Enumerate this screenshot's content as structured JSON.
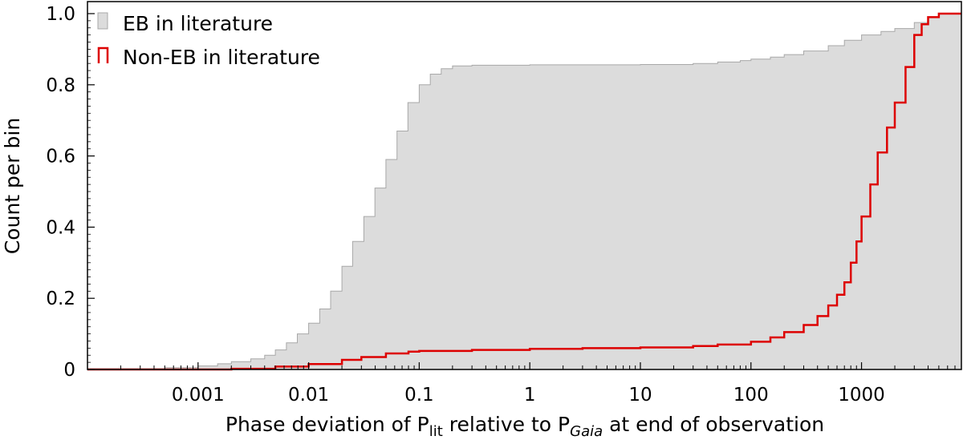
{
  "chart_data": {
    "type": "area",
    "x_scale": "log",
    "x_range": [
      0.0001,
      8000
    ],
    "y_range": [
      0,
      1.0
    ],
    "grid": false,
    "legend_position": "top-left",
    "xlabel_parts": {
      "prefix": "Phase deviation of P",
      "sub1": "lit",
      "middle": " relative to P",
      "sub2": "Gaia",
      "suffix": " at end of observation"
    },
    "ylabel": "Count per bin",
    "x_tick_labels": [
      "0.001",
      "0.01",
      "0.1",
      "1",
      "10",
      "100",
      "1000"
    ],
    "x_tick_values": [
      0.001,
      0.01,
      0.1,
      1,
      10,
      100,
      1000
    ],
    "y_tick_labels": [
      "0",
      "0.2",
      "0.4",
      "0.6",
      "0.8",
      "1.0"
    ],
    "y_tick_values": [
      0,
      0.2,
      0.4,
      0.6,
      0.8,
      1.0
    ],
    "series": [
      {
        "name": "EB in literature",
        "style": "filled-step",
        "color": "#dcdcdc",
        "edge_color": "#a8a8a8",
        "points": [
          [
            0.0001,
            0.002
          ],
          [
            0.0005,
            0.005
          ],
          [
            0.001,
            0.01
          ],
          [
            0.0015,
            0.016
          ],
          [
            0.002,
            0.022
          ],
          [
            0.003,
            0.03
          ],
          [
            0.004,
            0.04
          ],
          [
            0.005,
            0.055
          ],
          [
            0.0063,
            0.075
          ],
          [
            0.0079,
            0.1
          ],
          [
            0.01,
            0.13
          ],
          [
            0.0126,
            0.17
          ],
          [
            0.0158,
            0.22
          ],
          [
            0.02,
            0.29
          ],
          [
            0.025,
            0.36
          ],
          [
            0.0316,
            0.43
          ],
          [
            0.0398,
            0.51
          ],
          [
            0.05,
            0.59
          ],
          [
            0.063,
            0.67
          ],
          [
            0.079,
            0.75
          ],
          [
            0.1,
            0.8
          ],
          [
            0.126,
            0.83
          ],
          [
            0.158,
            0.845
          ],
          [
            0.2,
            0.853
          ],
          [
            0.3,
            0.855
          ],
          [
            1,
            0.856
          ],
          [
            10,
            0.857
          ],
          [
            30,
            0.86
          ],
          [
            50,
            0.864
          ],
          [
            80,
            0.868
          ],
          [
            100,
            0.872
          ],
          [
            150,
            0.878
          ],
          [
            200,
            0.885
          ],
          [
            300,
            0.895
          ],
          [
            500,
            0.91
          ],
          [
            700,
            0.925
          ],
          [
            1000,
            0.94
          ],
          [
            1500,
            0.95
          ],
          [
            2000,
            0.958
          ],
          [
            3000,
            0.975
          ],
          [
            4000,
            0.99
          ],
          [
            5000,
            1.0
          ],
          [
            8000,
            1.0
          ]
        ]
      },
      {
        "name": "Non-EB in literature",
        "style": "step-line",
        "color": "#dd0000",
        "points": [
          [
            0.0001,
            0.0
          ],
          [
            0.001,
            0.0
          ],
          [
            0.002,
            0.002
          ],
          [
            0.005,
            0.008
          ],
          [
            0.01,
            0.015
          ],
          [
            0.02,
            0.027
          ],
          [
            0.03,
            0.035
          ],
          [
            0.05,
            0.045
          ],
          [
            0.08,
            0.05
          ],
          [
            0.1,
            0.052
          ],
          [
            0.3,
            0.055
          ],
          [
            1,
            0.058
          ],
          [
            3,
            0.06
          ],
          [
            10,
            0.062
          ],
          [
            30,
            0.066
          ],
          [
            50,
            0.07
          ],
          [
            100,
            0.078
          ],
          [
            150,
            0.09
          ],
          [
            200,
            0.105
          ],
          [
            300,
            0.125
          ],
          [
            400,
            0.15
          ],
          [
            500,
            0.18
          ],
          [
            600,
            0.21
          ],
          [
            700,
            0.245
          ],
          [
            800,
            0.3
          ],
          [
            900,
            0.36
          ],
          [
            1000,
            0.43
          ],
          [
            1200,
            0.52
          ],
          [
            1400,
            0.61
          ],
          [
            1700,
            0.68
          ],
          [
            2000,
            0.75
          ],
          [
            2500,
            0.85
          ],
          [
            3000,
            0.94
          ],
          [
            3500,
            0.97
          ],
          [
            4000,
            0.99
          ],
          [
            5000,
            1.0
          ],
          [
            8000,
            1.0
          ]
        ]
      }
    ]
  }
}
